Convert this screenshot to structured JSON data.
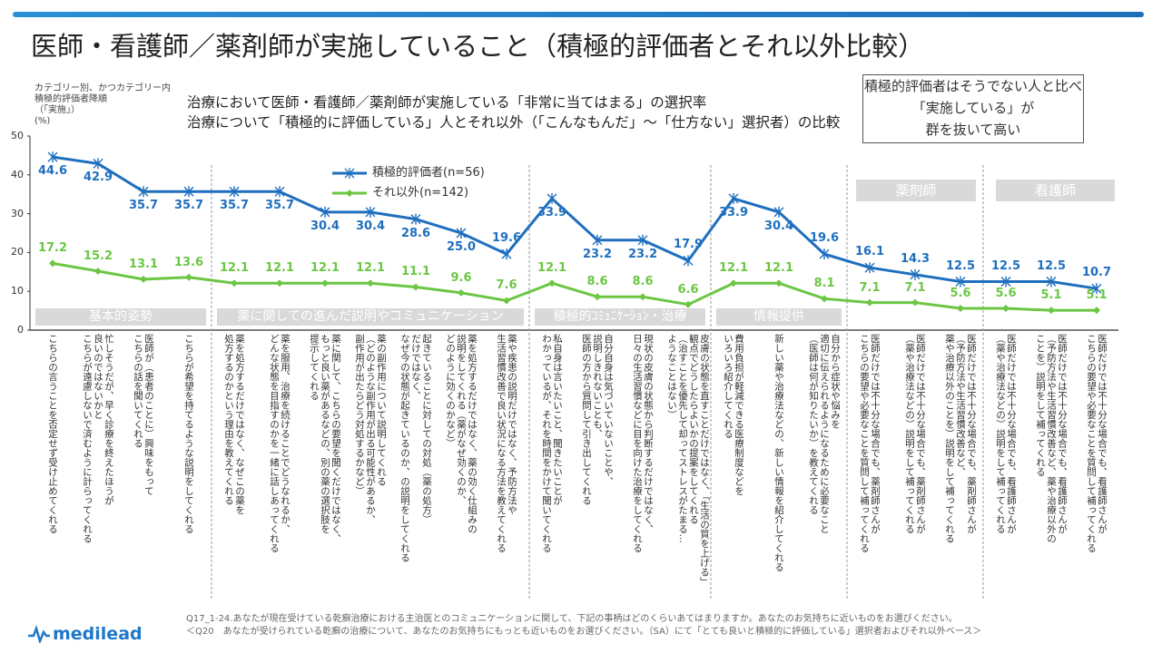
{
  "title": "医師・看護師／薬剤師が実施していること（積極的評価者とそれ以外比較）",
  "note": [
    "カテゴリー別、かつカテゴリー内",
    "積極的評価者降順",
    "（「実施」）",
    "(%)"
  ],
  "subtitle": [
    "治療において医師・看護師／薬剤師が実施している「非常に当てはまる」の選択率",
    "治療について「積極的に評価している」人とそれ以外（「こんなもんだ」～「仕方ない」選択者）の比較"
  ],
  "callout": [
    "積極的評価者はそうでない人と比べ",
    "「実施している」が",
    "群を抜いて高い"
  ],
  "roles": [
    "薬剤師",
    "看護師"
  ],
  "footer": [
    "Q17_1-24.あなたが現在受けている乾癬治療における主治医とのコミュニケーションに関して、下記の事柄はどのくらいあてはまりますか。あなたのお気持ちに近いものをお選びください。",
    "＜Q20　あなたが受けられている乾癬の治療について、あなたのお気持ちにもっとも近いものをお選びください。（SA）にて「とても良いと積極的に評価している」選択者およびそれ以外ベース＞"
  ],
  "logo": "medilead",
  "colors": {
    "series1": "#1f6fbf",
    "series2": "#6cc644",
    "group_bg": "#d9d9d9"
  },
  "chart_data": {
    "type": "line",
    "ylabel": "(%)",
    "ylim": [
      0,
      50
    ],
    "yticks": [
      "0",
      "10",
      "20",
      "30",
      "40",
      "50"
    ],
    "grid": false,
    "legend_position": "top-center",
    "groups": [
      {
        "label": "基本的姿勢",
        "count": 4
      },
      {
        "label": "薬に関しての進んだ説明やコミュニケーション",
        "count": 7
      },
      {
        "label": "積極的ｺﾐｭﾆｹｰｼｮﾝ・治療",
        "count": 4
      },
      {
        "label": "情報提供",
        "count": 3
      },
      {
        "label": "",
        "count": 3
      },
      {
        "label": "",
        "count": 3
      }
    ],
    "categories": [
      "こちらの言うことを否定せず受け止めてくれる",
      "忙しそうだが、早く診療を終えたほうが\n良いのではないかと\nこちらが遠慮しないで済むように計らってくれる",
      "医師が（患者のことに）興味をもって\nこちらの話を聞いてくれる",
      "こちらが希望を持てるような説明をしてくれる",
      "薬を処方するだけではなく、なぜこの薬を\n処方するのかという理由を教えてくれる",
      "薬を服用、治療を続けることでどうなれるか、\nどんな状態を目指すのかを一緒に話しあってくれる",
      "薬に関して、こちらの要望を聞くだけではなく、\nもっと良い薬があるなどの、別の薬の選択肢を\n提示してくれる",
      "薬の副作用について説明してくれる\n（どのような副作用が出る可能性があるか、\n副作用が出たらどう対処するかなど）",
      "起きていることに対しての対処（薬の処方）\nだけではなく、\nなぜ今の状態が起きているのか、の説明をしてくれる",
      "薬を処方するだけではなく、薬の効く仕組みの\n説明をしてくれる（薬がなぜ効くのか、\nどのように効くのかなど）",
      "薬や疾患の説明だけではなく、予防方法や\n生活習慣改善で良い状況になる方法を教えてくれる",
      "私自身は言いたいこと、聞きたいことが\nわかっているが、それを時間をかけて聞いてくれる",
      "自分自身は気づいていないことや、\n説明しきれないことも、\n医師の方から質問して引き出してくれる",
      "現状の皮膚の状態から判断するだけではなく、\n日々の生活習慣などに目を向けた治療をしてくれる",
      "皮膚の状態を直すことだけではなく、「生活の質を上げる」\n観点でどうしたらよいかの提案をしてくれる\n（治すことを優先して却ってストレスがたまる…\nようなことはない）",
      "費用負担が軽減できる医療制度などを\nいろいろ紹介してくれる",
      "新しい薬や治療法などの、新しい情報を紹介してくれる",
      "自分から症状や悩みを\n適切に伝えられるようになるために必要なこと\n（医師は何が知りたいか）を教えてくれる",
      "医師だけでは不十分な場合でも、薬剤師さんが\nこちらの要望や必要なことを質問して補ってくれる",
      "医師だけでは不十分な場合でも、薬剤師さんが\n（薬や治療法などの）説明をして補ってくれる",
      "医師だけでは不十分な場合でも、薬剤師さんが\n（予防方法や生活習慣改善など、\n薬や治療以外のことを）説明をして補ってくれる",
      "医師だけでは不十分な場合でも、看護師さんが\n（薬や治療法などの）説明をして補ってくれる",
      "医師だけでは不十分な場合でも、看護師さんが\n（予防方法や生活習慣改善など、薬や治療以外の\nことを）説明をして補ってくれる",
      "医師だけでは不十分な場合でも、看護師さんが\nこちらの要望や必要なことを質問して補ってくれる"
    ],
    "series": [
      {
        "name": "積極的評価者(n=56)",
        "values": [
          44.6,
          42.9,
          35.7,
          35.7,
          35.7,
          35.7,
          30.4,
          30.4,
          28.6,
          25.0,
          19.6,
          33.9,
          23.2,
          23.2,
          17.9,
          33.9,
          30.4,
          19.6,
          16.1,
          14.3,
          12.5,
          12.5,
          12.5,
          10.7
        ]
      },
      {
        "name": "それ以外(n=142)",
        "values": [
          17.2,
          15.2,
          13.1,
          13.6,
          12.1,
          12.1,
          12.1,
          12.1,
          11.1,
          9.6,
          7.6,
          12.1,
          8.6,
          8.6,
          6.6,
          12.1,
          12.1,
          8.1,
          7.1,
          7.1,
          5.6,
          5.6,
          5.1,
          5.1
        ]
      }
    ]
  }
}
